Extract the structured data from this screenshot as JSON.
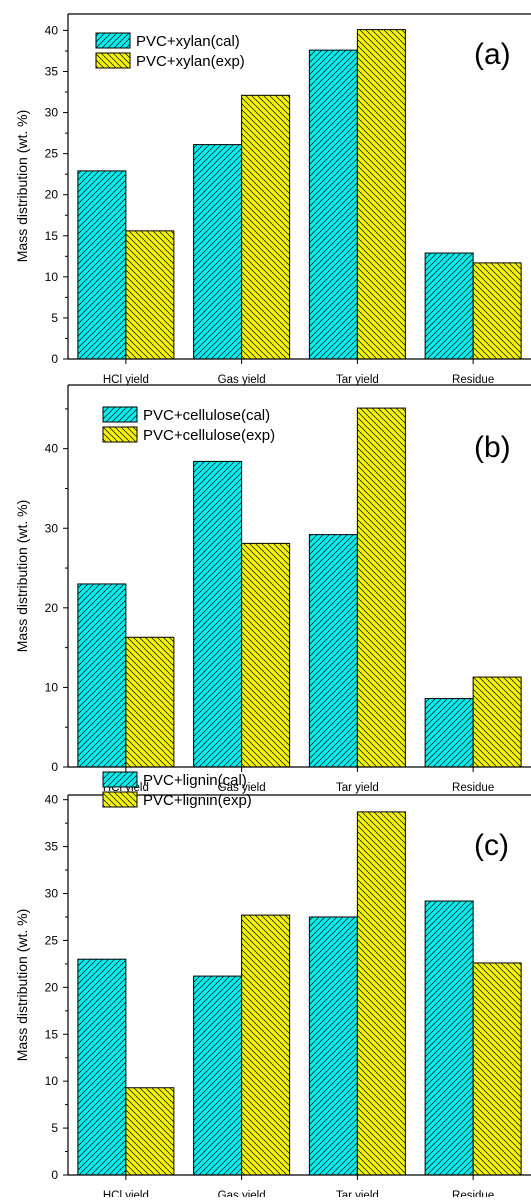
{
  "figure": {
    "ylabel": "Mass distribution (wt. %)"
  },
  "colors": {
    "cal": "#00f0f0",
    "exp": "#f5f500",
    "stroke": "#000000",
    "axis": "#000000"
  },
  "chart_data": [
    {
      "type": "bar",
      "panel": "(a)",
      "ylabel": "Mass distribution (wt. %)",
      "categories": [
        "HCl yield",
        "Gas yield",
        "Tar yield",
        "Residue"
      ],
      "series": [
        {
          "name": "PVC+xylan(cal)",
          "values": [
            22.9,
            26.1,
            37.6,
            12.9
          ],
          "fill": "cyan-hatched"
        },
        {
          "name": "PVC+xylan(exp)",
          "values": [
            15.6,
            32.1,
            40.1,
            11.7
          ],
          "fill": "yellow-hatched"
        }
      ],
      "ylim": [
        0,
        42
      ],
      "yticks": [
        0,
        5,
        10,
        15,
        20,
        25,
        30,
        35,
        40
      ],
      "legend": "top-left",
      "grid": false
    },
    {
      "type": "bar",
      "panel": "(b)",
      "ylabel": "Mass distribution (wt. %)",
      "categories": [
        "HCl yield",
        "Gas yield",
        "Tar yield",
        "Residue"
      ],
      "series": [
        {
          "name": "PVC+cellulose(cal)",
          "values": [
            23.0,
            38.4,
            29.2,
            8.6
          ],
          "fill": "cyan-hatched"
        },
        {
          "name": "PVC+cellulose(exp)",
          "values": [
            16.3,
            28.1,
            45.1,
            11.3
          ],
          "fill": "yellow-hatched"
        }
      ],
      "ylim": [
        0,
        48
      ],
      "yticks": [
        0,
        10,
        20,
        30,
        40
      ],
      "legend": "top-left",
      "grid": false
    },
    {
      "type": "bar",
      "panel": "(c)",
      "ylabel": "Mass distribution (wt. %)",
      "categories": [
        "HCl yield",
        "Gas yield",
        "Tar yield",
        "Residue"
      ],
      "series": [
        {
          "name": "PVC+lignin(cal)",
          "values": [
            23.0,
            21.2,
            27.5,
            29.2
          ],
          "fill": "cyan-hatched"
        },
        {
          "name": "PVC+lignin(exp)",
          "values": [
            9.3,
            27.7,
            38.7,
            22.6
          ],
          "fill": "yellow-hatched"
        }
      ],
      "ylim": [
        0,
        40.5
      ],
      "yticks": [
        0,
        5,
        10,
        15,
        20,
        25,
        30,
        35,
        40
      ],
      "legend": "top-left",
      "grid": false
    }
  ]
}
